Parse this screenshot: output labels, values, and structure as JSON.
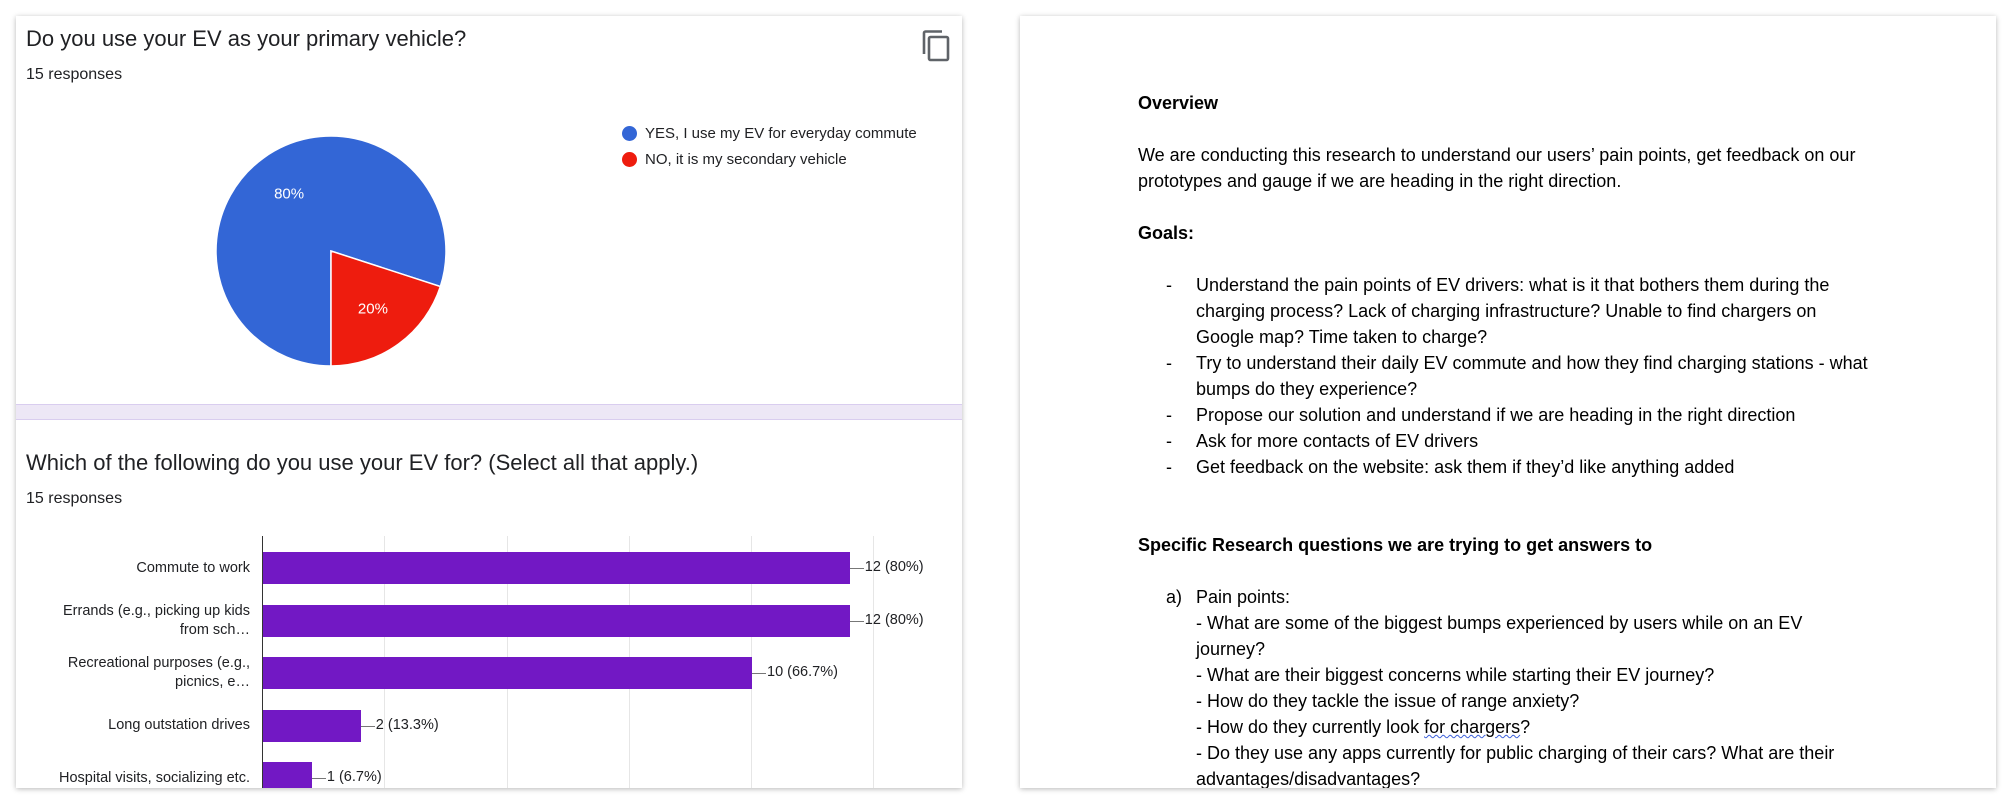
{
  "question1": {
    "title": "Do you use your EV as your primary vehicle?",
    "responses": "15 responses",
    "chart_data": {
      "type": "pie",
      "slices": [
        {
          "label": "YES, I use my EV for everyday commute",
          "value": 80,
          "display": "80%",
          "color": "#3366d6"
        },
        {
          "label": "NO, it is my secondary vehicle",
          "value": 20,
          "display": "20%",
          "color": "#ee1c0e"
        }
      ]
    }
  },
  "question2": {
    "title": "Which of the following do you use your EV for? (Select all that apply.)",
    "responses": "15 responses",
    "chart_data": {
      "type": "bar",
      "orientation": "horizontal",
      "color": "#7218c4",
      "categories": [
        [
          "Commute to work"
        ],
        [
          "Errands (e.g., picking up kids",
          "from sch…"
        ],
        [
          "Recreational purposes (e.g.,",
          "picnics, e…"
        ],
        [
          "Long outstation drives"
        ],
        [
          "Hospital visits, socializing etc."
        ]
      ],
      "values": [
        12,
        12,
        10,
        2,
        1
      ],
      "value_labels": [
        "12 (80%)",
        "12 (80%)",
        "10 (66.7%)",
        "2 (13.3%)",
        "1 (6.7%)"
      ],
      "xlim": [
        0,
        15
      ],
      "grid": true
    }
  },
  "doc": {
    "overview_heading": "Overview",
    "overview_text_1": "We are conducting this research to understand our users’ pain points, get feedback on our",
    "overview_text_2": "prototypes and gauge if we are heading in the right direction.",
    "goals_heading": "Goals:",
    "goals": [
      [
        "Understand the pain points of EV drivers: what is it that bothers them during the",
        "charging process? Lack of charging infrastructure? Unable to find chargers on",
        "Google map? Time taken to charge?"
      ],
      [
        "Try to understand their daily EV commute and how they find charging stations - what",
        "bumps do they experience?"
      ],
      [
        "Propose our solution and understand if we are heading in the right direction"
      ],
      [
        "Ask for more contacts of EV drivers"
      ],
      [
        "Get feedback on the website: ask them if they’d like anything added"
      ]
    ],
    "bullet_char": "-",
    "research_heading": "Specific Research questions we are trying to get answers to",
    "section_a_marker": "a)",
    "section_a_title": "Pain points:",
    "section_a_q1a": "- What are some of the biggest bumps experienced by users while on an EV",
    "section_a_q1b": "journey?",
    "section_a_q2": "- What are their biggest concerns while starting their EV journey?",
    "section_a_q3": "- How do they tackle the issue of range anxiety?",
    "section_a_q4_pre": "- How do they currently look ",
    "section_a_q4_squiggle": "for chargers",
    "section_a_q4_post": "?",
    "section_a_q5a": "- Do they use any apps currently for public charging of their cars? What are their",
    "section_a_q5b": "advantages/disadvantages?"
  }
}
